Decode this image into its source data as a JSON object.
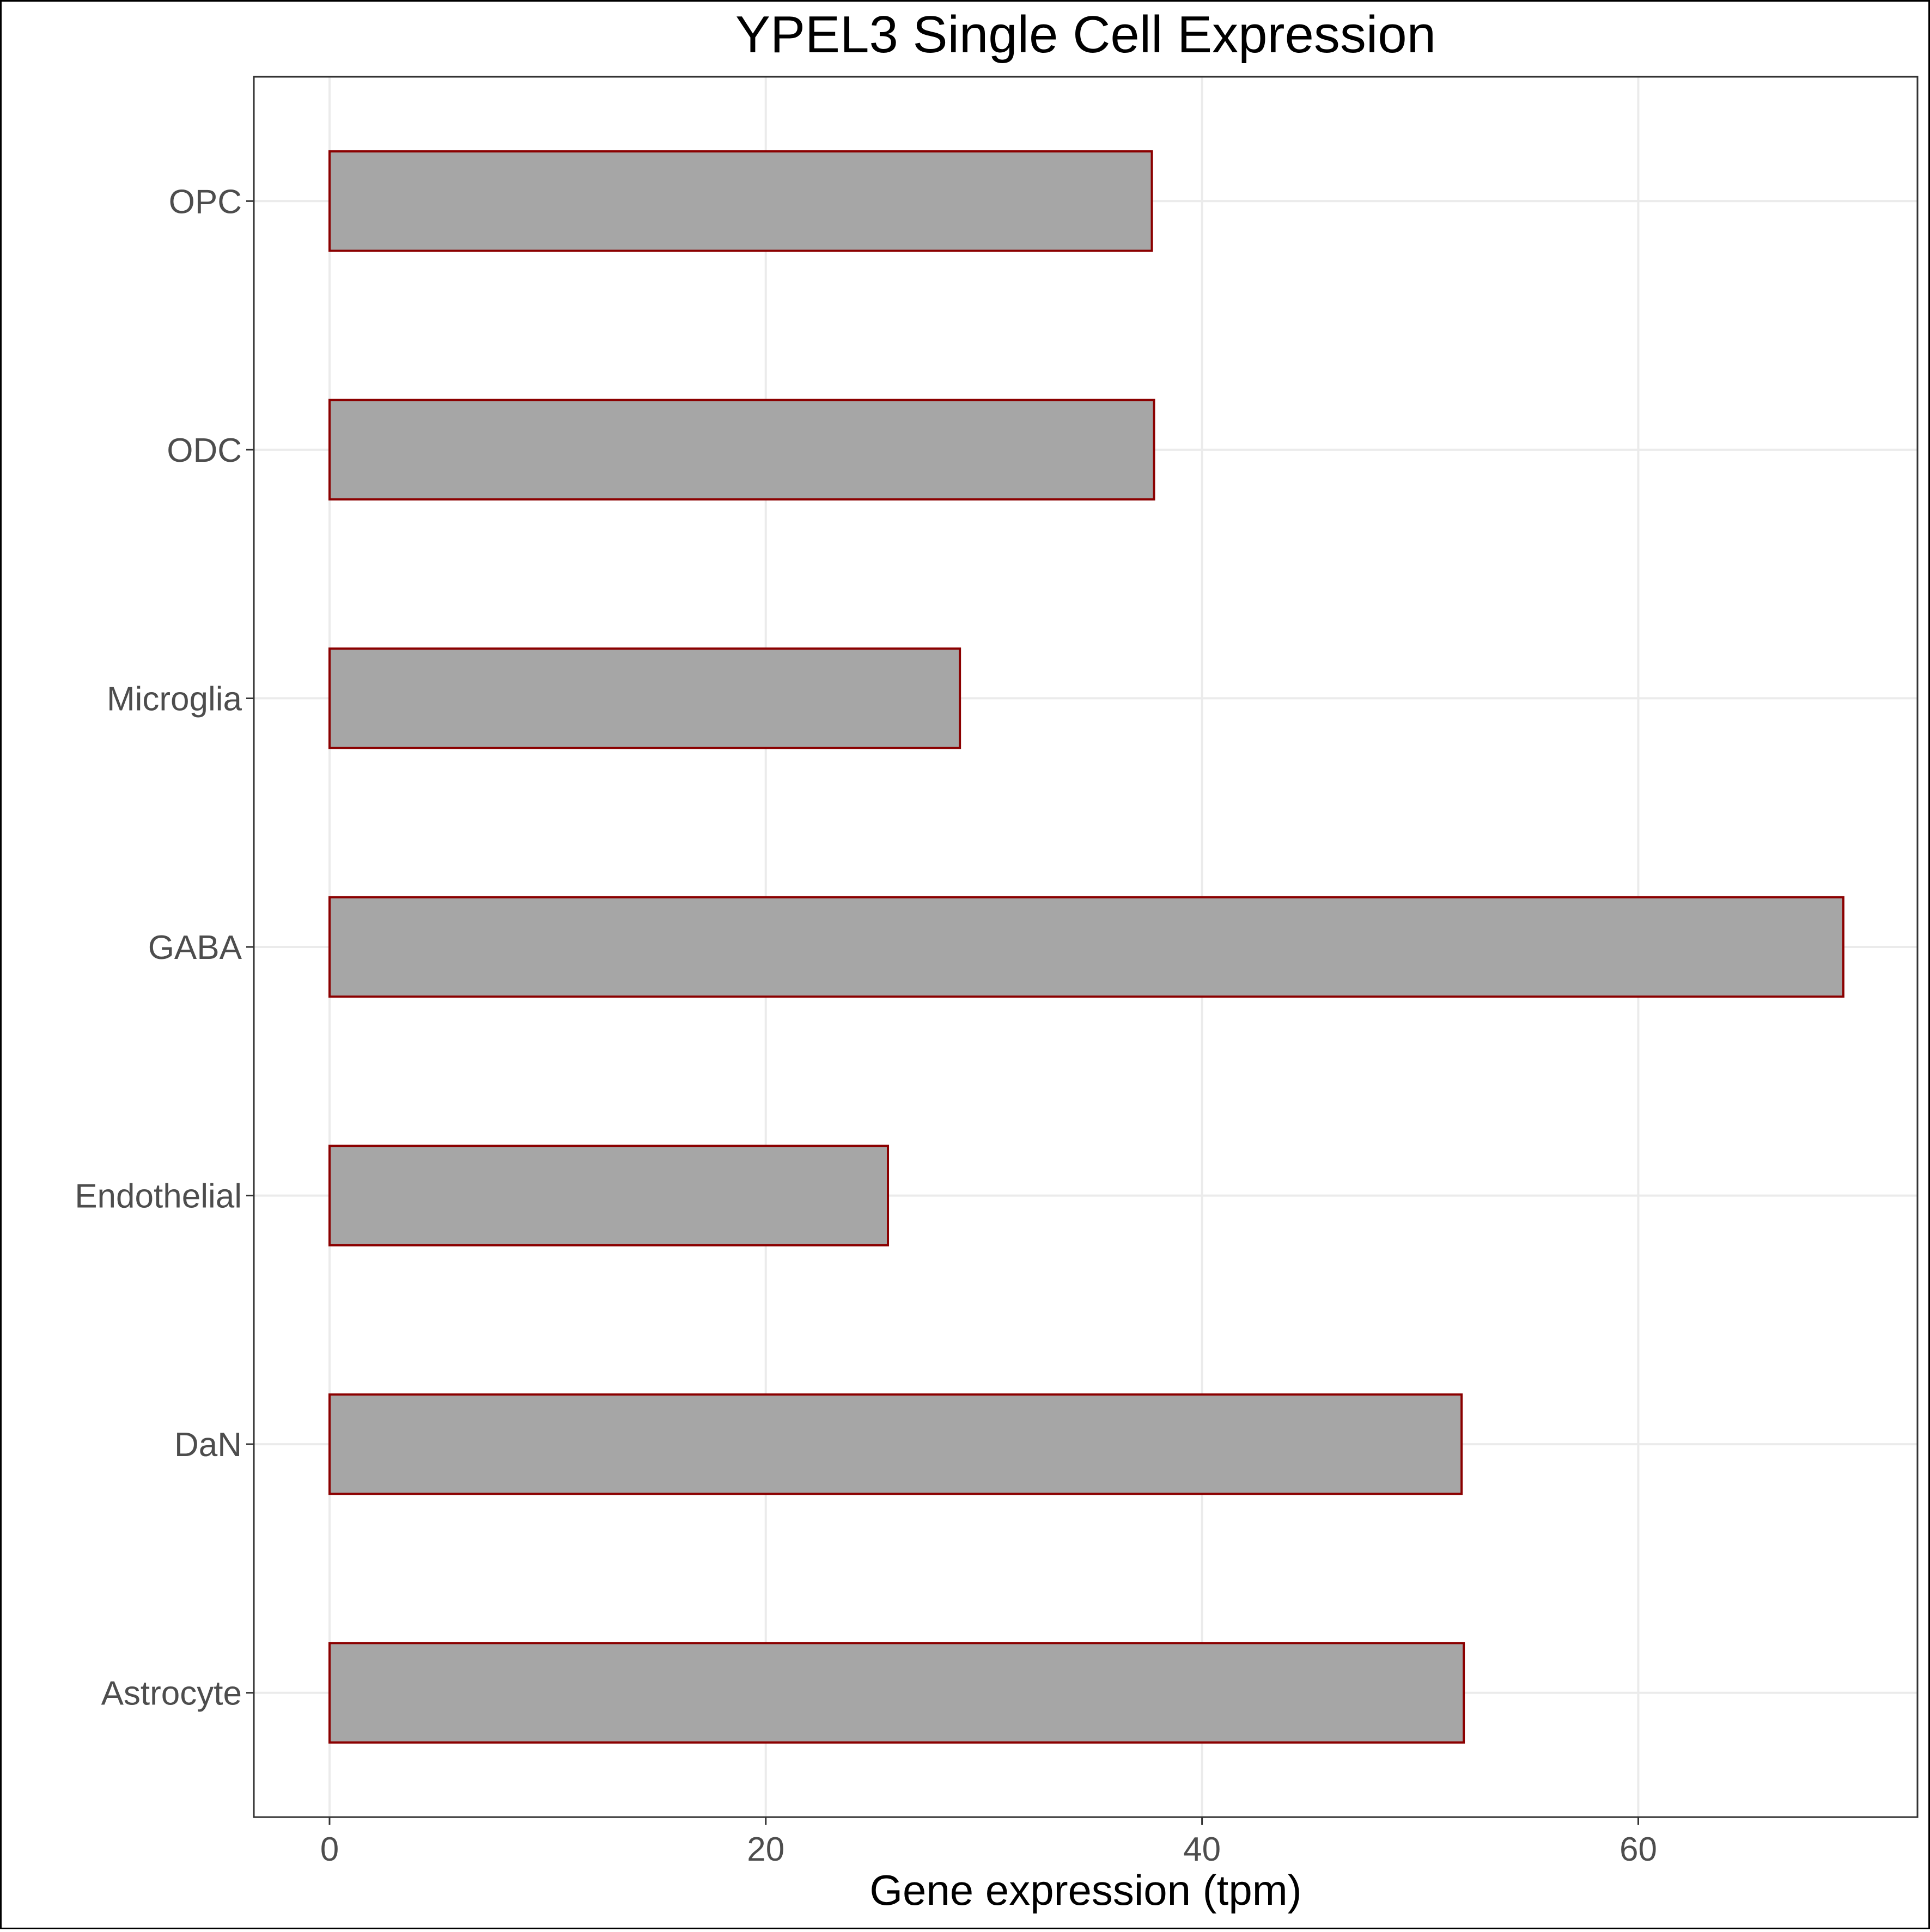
{
  "chart_data": {
    "type": "bar",
    "orientation": "horizontal",
    "title": "YPEL3 Single Cell Expression",
    "xlabel": "Gene expression (tpm)",
    "ylabel": "",
    "categories": [
      "Astrocyte",
      "DaN",
      "Endothelial",
      "GABA",
      "Microglia",
      "ODC",
      "OPC"
    ],
    "values": [
      52.0,
      51.9,
      25.6,
      69.4,
      28.9,
      37.8,
      37.7
    ],
    "xlim": [
      -3.47,
      72.8
    ],
    "xticks": [
      0,
      20,
      40,
      60
    ],
    "xtick_labels": [
      "0",
      "20",
      "40",
      "60"
    ],
    "grid": true,
    "legend": "none",
    "bar_fill": "#a6a6a6",
    "bar_outline": "#8b0000"
  }
}
